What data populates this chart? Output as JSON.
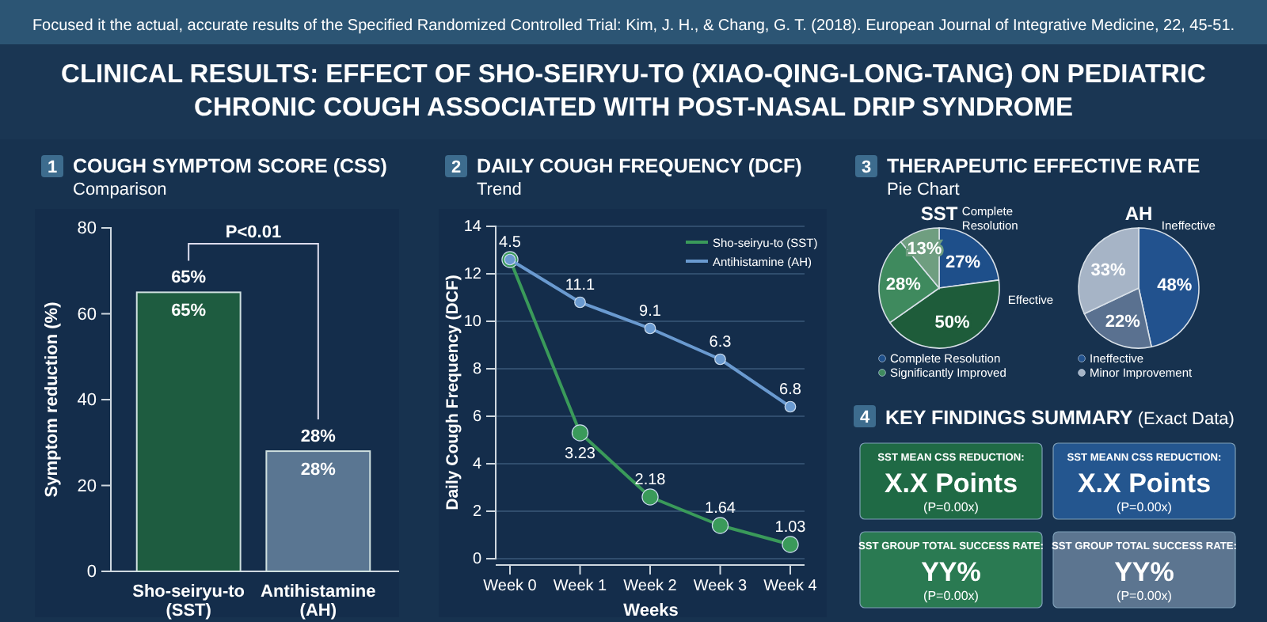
{
  "chart_data": [
    {
      "type": "bar",
      "title": "COUGH SYMPTOM SCORE (CSS)",
      "subtitle": "Comparison",
      "ylabel": "Symptom reduction (%)",
      "categories": [
        "Sho-seiryu-to (SST)",
        "Antihistamine (AH)"
      ],
      "values": [
        65,
        28
      ],
      "colors": [
        "#1e5c40",
        "#5a7692"
      ],
      "value_labels": [
        "65%",
        "28%"
      ],
      "ylim": [
        0,
        80
      ],
      "yticks": [
        0,
        20,
        40,
        60,
        80
      ],
      "annotations": [
        "1",
        "P<0.01",
        "Focused it the actual, accurate results of the Specified Randomized Controlled Trial: Kim, J. H., & Chang, G. T. (2018). European Journal of Integrative Medicine, 22, 45-51.",
        "CLINICAL RESULTS: EFFECT OF SHO-SEIRYU-TO (XIAO-QING-LONG-TANG) ON PEDIATRIC CHRONIC COUGH ASSOCIATED WITH POST-NASAL DRIP SYNDROME"
      ]
    },
    {
      "type": "line",
      "title": "DAILY COUGH FREQUENCY (DCF)",
      "subtitle": "Trend",
      "xlabel": "Weeks",
      "ylabel": "Daily Cough Frequency (DCF)",
      "categories": [
        "Week 0",
        "Week 1",
        "Week 2",
        "Week 3",
        "Week 4"
      ],
      "series": [
        {
          "name": "Sho-seiryu-to (SST)",
          "color": "#3a9a5a",
          "values": [
            12.6,
            5.3,
            2.6,
            1.4,
            0.6
          ]
        },
        {
          "name": "Antihistamine (AH)",
          "color": "#6a9ad0",
          "values": [
            12.6,
            10.8,
            9.7,
            8.4,
            6.4
          ]
        }
      ],
      "ylim": [
        0,
        14
      ],
      "yticks": [
        0,
        2,
        4,
        6,
        8,
        10,
        12,
        14
      ],
      "grid": "y",
      "legend": "top right",
      "marker": "circle",
      "annotations": [
        "2",
        "4.5",
        "3.23",
        "2.18",
        "1.64",
        "1.03",
        "11.1",
        "9.1",
        "6.3",
        "6.8"
      ]
    },
    {
      "type": "pie",
      "title": "SST",
      "categories": [
        "Complete Resolution",
        "Effective",
        null,
        null
      ],
      "values": [
        27,
        50,
        28,
        13
      ],
      "colors": [
        "#1e4f8a",
        "#1e5c3a",
        "#3f8a5e",
        "#6f9e80"
      ],
      "value_labels": [
        "27%",
        "50%",
        "28%",
        "13%"
      ],
      "annotations": [
        "3",
        "THERAPEUTIC EFFECTIVE RATE",
        "Pie Chart",
        "Complete Resolution",
        "Significantly Improved"
      ]
    },
    {
      "type": "pie",
      "title": "AH",
      "categories": [
        "Ineffective",
        null,
        null
      ],
      "values": [
        48,
        22,
        33
      ],
      "colors": [
        "#22528e",
        "#5a7190",
        "#a6b4c6"
      ],
      "value_labels": [
        "48%",
        "22%",
        "33%"
      ],
      "annotations": [
        "Ineffective",
        "Minor Improvement"
      ]
    },
    {
      "type": "other",
      "title": "KEY FINDINGS SUMMARY",
      "subtitle": "(Exact Data)",
      "colors": [
        "#1f6a45",
        "#24568f",
        "#2a7a52",
        "#5c7590"
      ],
      "annotations": [
        "4",
        "SST MEAN CSS REDUCTION:",
        "X.X Points",
        "(P=0.00x)",
        "SST MEANN CSS REDUCTION:",
        "X.X Points",
        "(P=0.00x)",
        "SST GROUP TOTAL SUCCESS RATE:",
        "YY%",
        "(P=0.00x)",
        "SST GROUP TOTAL SUCCESS RATE:",
        "YY%",
        "(P=0.00x)"
      ]
    }
  ]
}
